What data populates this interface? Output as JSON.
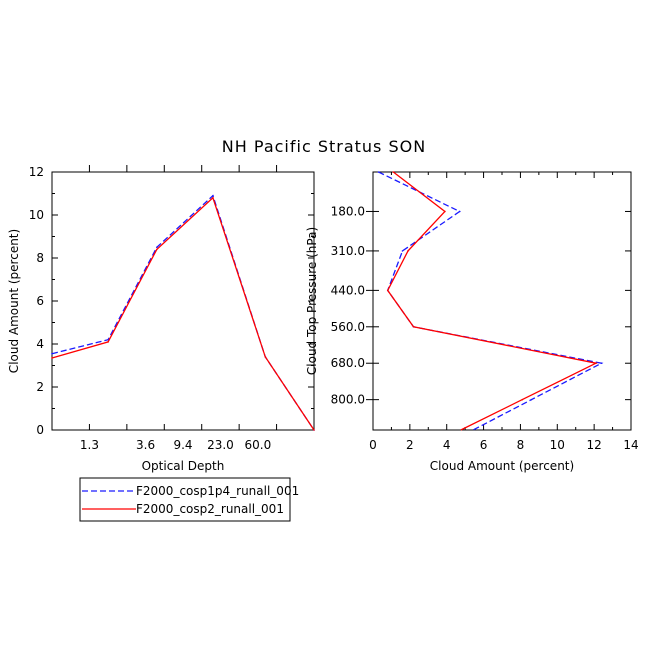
{
  "title": "NH Pacific Stratus SON",
  "colors": {
    "series_1": "#1a1aff",
    "series_2": "#ff0000"
  },
  "legend": {
    "entries": [
      "F2000_cosp1p4_runall_001",
      "F2000_cosp2_runall_001"
    ]
  },
  "chart_data": [
    {
      "type": "line",
      "xlabel": "Optical Depth",
      "ylabel": "Cloud Amount (percent)",
      "xlim": [
        0,
        7
      ],
      "ylim": [
        0,
        12
      ],
      "xticks": [
        1,
        2,
        3,
        4,
        5,
        6
      ],
      "xtick_labels": [
        "1.3",
        "3.6",
        "9.4",
        "23.0",
        "60.0"
      ],
      "xtick_label_positions": [
        1,
        2.5,
        3.5,
        4.5,
        5.5
      ],
      "yticks": [
        0,
        2,
        4,
        6,
        8,
        10,
        12
      ],
      "ytick_labels": [
        "0",
        "2",
        "4",
        "6",
        "8",
        "10",
        "12"
      ],
      "series": [
        {
          "name": "F2000_cosp1p4_runall_001",
          "style": "dashed",
          "x": [
            0,
            1.5,
            2.8,
            4.3,
            5.7,
            7
          ],
          "y": [
            3.55,
            4.2,
            8.5,
            10.9,
            3.4,
            0.0
          ]
        },
        {
          "name": "F2000_cosp2_runall_001",
          "style": "solid",
          "x": [
            0,
            1.5,
            2.8,
            4.3,
            5.7,
            7
          ],
          "y": [
            3.35,
            4.1,
            8.4,
            10.8,
            3.4,
            0.0
          ]
        }
      ]
    },
    {
      "type": "line",
      "orientation": "vertical-profile",
      "xlabel": "Cloud Amount (percent)",
      "ylabel": "Cloud Top Pressure (hPa)",
      "xlim": [
        0,
        14
      ],
      "ylim": [
        50,
        900
      ],
      "y_inverted": true,
      "xticks": [
        0,
        2,
        4,
        6,
        8,
        10,
        12,
        14
      ],
      "xtick_labels": [
        "0",
        "2",
        "4",
        "6",
        "8",
        "10",
        "12",
        "14"
      ],
      "yticks": [
        180,
        310,
        440,
        560,
        680,
        800
      ],
      "ytick_labels": [
        "180.0",
        "310.0",
        "440.0",
        "560.0",
        "680.0",
        "800.0"
      ],
      "series": [
        {
          "name": "F2000_cosp1p4_runall_001",
          "style": "dashed",
          "x": [
            0.3,
            4.7,
            1.6,
            0.8,
            2.2,
            12.4,
            8.6
          ],
          "y": [
            50,
            180,
            310,
            440,
            560,
            680,
            800
          ]
        },
        {
          "name": "F2000_cosp2_runall_001",
          "style": "solid",
          "x": [
            1.1,
            3.9,
            1.9,
            0.8,
            2.2,
            12.1,
            8.1
          ],
          "y": [
            50,
            180,
            310,
            440,
            560,
            680,
            800
          ]
        }
      ]
    }
  ]
}
